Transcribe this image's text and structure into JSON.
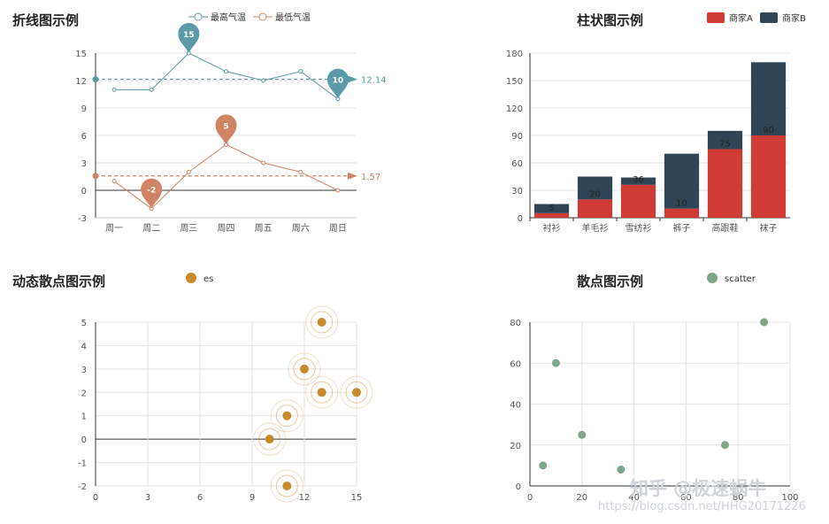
{
  "chart_data": [
    {
      "type": "line",
      "title": "折线图示例",
      "categories": [
        "周一",
        "周二",
        "周三",
        "周四",
        "周五",
        "周六",
        "周日"
      ],
      "series": [
        {
          "name": "最高气温",
          "values": [
            11,
            11,
            15,
            13,
            12,
            13,
            10
          ],
          "color": "#5b9aa6",
          "markpoints": [
            {
              "label": "15",
              "index": 2
            },
            {
              "label": "10",
              "index": 6
            }
          ],
          "markline": {
            "value": 12.14,
            "label": "12.14"
          }
        },
        {
          "name": "最低气温",
          "values": [
            1,
            -2,
            2,
            5,
            3,
            2,
            0
          ],
          "color": "#d08466",
          "markpoints": [
            {
              "label": "5",
              "index": 3
            },
            {
              "label": "-2",
              "index": 1
            }
          ],
          "markline": {
            "value": 1.57,
            "label": "1.57"
          }
        }
      ],
      "ylim": [
        -3,
        15
      ],
      "yticks": [
        "-3",
        "0",
        "3",
        "6",
        "9",
        "12",
        "15"
      ],
      "legend": "top-center",
      "grid": true
    },
    {
      "type": "bar",
      "stacked": true,
      "title": "柱状图示例",
      "categories": [
        "衬衫",
        "羊毛衫",
        "雪纺衫",
        "裤子",
        "高跟鞋",
        "袜子"
      ],
      "series": [
        {
          "name": "商家A",
          "values": [
            5,
            20,
            36,
            10,
            75,
            90
          ],
          "color": "#d13b35"
        },
        {
          "name": "商家B",
          "values": [
            10,
            25,
            8,
            60,
            20,
            80
          ],
          "color": "#2f4555"
        }
      ],
      "data_labels": [
        "5",
        "20",
        "36",
        "10",
        "75",
        "90"
      ],
      "ylim": [
        0,
        180
      ],
      "yticks": [
        "0",
        "30",
        "60",
        "90",
        "120",
        "150",
        "180"
      ],
      "legend": "top-right",
      "grid": true
    },
    {
      "type": "scatter",
      "title": "动态散点图示例",
      "series": [
        {
          "name": "es",
          "color": "#c98a2b",
          "points": [
            [
              10,
              0
            ],
            [
              11,
              1
            ],
            [
              11,
              -2
            ],
            [
              12,
              3
            ],
            [
              13,
              2
            ],
            [
              13,
              5
            ],
            [
              15,
              2
            ]
          ]
        }
      ],
      "xlim": [
        0,
        15
      ],
      "ylim": [
        -2,
        5
      ],
      "xticks": [
        "0",
        "3",
        "6",
        "9",
        "12",
        "15"
      ],
      "yticks": [
        "-2",
        "-1",
        "0",
        "1",
        "2",
        "3",
        "4",
        "5"
      ],
      "legend": "top-center",
      "grid": true
    },
    {
      "type": "scatter",
      "title": "散点图示例",
      "series": [
        {
          "name": "scatter",
          "color": "#7fa68a",
          "points": [
            [
              5,
              10
            ],
            [
              10,
              60
            ],
            [
              20,
              25
            ],
            [
              35,
              8
            ],
            [
              75,
              20
            ],
            [
              90,
              80
            ]
          ]
        }
      ],
      "xlim": [
        0,
        100
      ],
      "ylim": [
        0,
        80
      ],
      "xticks": [
        "0",
        "20",
        "40",
        "60",
        "80",
        "100"
      ],
      "yticks": [
        "0",
        "20",
        "40",
        "60",
        "80"
      ],
      "legend": "top-center",
      "grid": true
    }
  ],
  "watermark": {
    "brand": "知乎 @极速蜗牛",
    "url": "https://blog.csdn.net/HHG20171226"
  }
}
